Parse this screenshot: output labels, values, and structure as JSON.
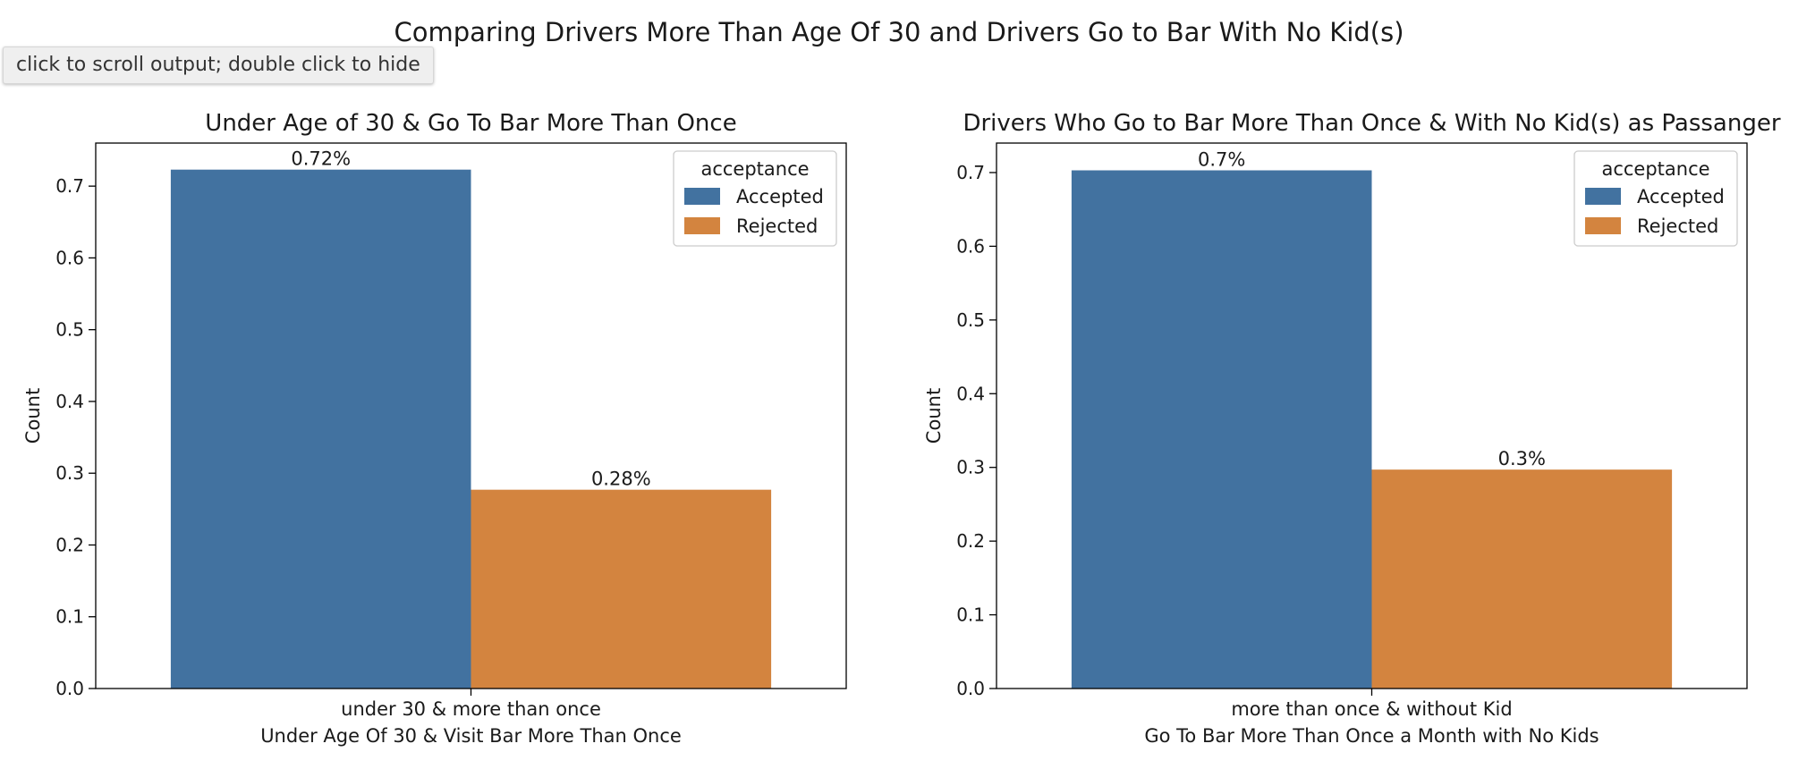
{
  "output_control": {
    "label": "click to scroll output; double click to hide"
  },
  "figure": {
    "suptitle": "Comparing Drivers More Than Age Of 30 and Drivers Go to Bar With No Kid(s)"
  },
  "colors": {
    "Accepted": "#4272a0",
    "Rejected": "#d3843f"
  },
  "chart_data": [
    {
      "type": "bar",
      "title": "Under Age of 30 & Go To Bar More Than Once",
      "xlabel": "Under Age Of 30 & Visit Bar More Than Once",
      "ylabel": "Count",
      "categories": [
        "under 30 & more than once"
      ],
      "series": [
        {
          "name": "Accepted",
          "values": [
            0.723
          ],
          "label": "0.72%"
        },
        {
          "name": "Rejected",
          "values": [
            0.277
          ],
          "label": "0.28%"
        }
      ],
      "ylim": [
        0,
        0.76
      ],
      "yticks": [
        "0.0",
        "0.1",
        "0.2",
        "0.3",
        "0.4",
        "0.5",
        "0.6",
        "0.7"
      ],
      "grid": false,
      "legend": {
        "title": "acceptance",
        "placement": "top-right",
        "entries": [
          "Accepted",
          "Rejected"
        ]
      }
    },
    {
      "type": "bar",
      "title": "Drivers Who Go to Bar More Than Once & With No Kid(s) as Passanger",
      "xlabel": "Go To Bar More Than Once a Month with No Kids",
      "ylabel": "Count",
      "categories": [
        "more than once & without Kid"
      ],
      "series": [
        {
          "name": "Accepted",
          "values": [
            0.703
          ],
          "label": "0.7%"
        },
        {
          "name": "Rejected",
          "values": [
            0.297
          ],
          "label": "0.3%"
        }
      ],
      "ylim": [
        0,
        0.74
      ],
      "yticks": [
        "0.0",
        "0.1",
        "0.2",
        "0.3",
        "0.4",
        "0.5",
        "0.6",
        "0.7"
      ],
      "grid": false,
      "legend": {
        "title": "acceptance",
        "placement": "top-right",
        "entries": [
          "Accepted",
          "Rejected"
        ]
      }
    }
  ]
}
